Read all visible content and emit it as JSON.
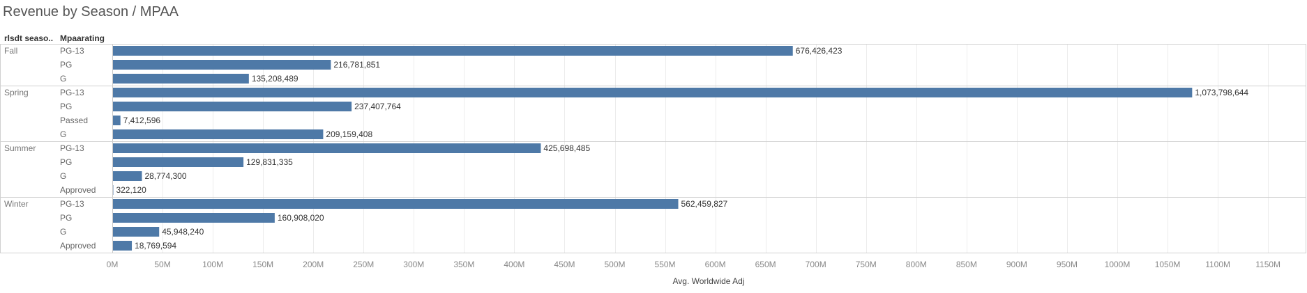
{
  "header": {
    "title": "Revenue by Season / MPAA",
    "season_col": "rlsdt seaso..",
    "mpaa_col": "Mpaarating"
  },
  "colors": {
    "bar": "#4e79a7",
    "grid": "#ececec",
    "divider": "#d0d0d0"
  },
  "chart_data": {
    "type": "bar",
    "orientation": "horizontal",
    "title": "Revenue by Season / MPAA",
    "xlabel": "Avg. Worldwide Adj",
    "xlim": [
      0,
      1180000000
    ],
    "ticks": [
      0,
      50000000,
      100000000,
      150000000,
      200000000,
      250000000,
      300000000,
      350000000,
      400000000,
      450000000,
      500000000,
      550000000,
      600000000,
      650000000,
      700000000,
      750000000,
      800000000,
      850000000,
      900000000,
      950000000,
      1000000000,
      1050000000,
      1100000000,
      1150000000
    ],
    "tick_labels": [
      "0M",
      "50M",
      "100M",
      "150M",
      "200M",
      "250M",
      "300M",
      "350M",
      "400M",
      "450M",
      "500M",
      "550M",
      "600M",
      "650M",
      "700M",
      "750M",
      "800M",
      "850M",
      "900M",
      "950M",
      "1000M",
      "1050M",
      "1100M",
      "1150M"
    ],
    "grid": true,
    "groups": [
      {
        "season": "Fall",
        "bars": [
          {
            "rating": "PG-13",
            "value": 676426423,
            "label": "676,426,423"
          },
          {
            "rating": "PG",
            "value": 216781851,
            "label": "216,781,851"
          },
          {
            "rating": "G",
            "value": 135208489,
            "label": "135,208,489"
          }
        ]
      },
      {
        "season": "Spring",
        "bars": [
          {
            "rating": "PG-13",
            "value": 1073798644,
            "label": "1,073,798,644"
          },
          {
            "rating": "PG",
            "value": 237407764,
            "label": "237,407,764"
          },
          {
            "rating": "Passed",
            "value": 7412596,
            "label": "7,412,596"
          },
          {
            "rating": "G",
            "value": 209159408,
            "label": "209,159,408"
          }
        ]
      },
      {
        "season": "Summer",
        "bars": [
          {
            "rating": "PG-13",
            "value": 425698485,
            "label": "425,698,485"
          },
          {
            "rating": "PG",
            "value": 129831335,
            "label": "129,831,335"
          },
          {
            "rating": "G",
            "value": 28774300,
            "label": "28,774,300"
          },
          {
            "rating": "Approved",
            "value": 322120,
            "label": "322,120"
          }
        ]
      },
      {
        "season": "Winter",
        "bars": [
          {
            "rating": "PG-13",
            "value": 562459827,
            "label": "562,459,827"
          },
          {
            "rating": "PG",
            "value": 160908020,
            "label": "160,908,020"
          },
          {
            "rating": "G",
            "value": 45948240,
            "label": "45,948,240"
          },
          {
            "rating": "Approved",
            "value": 18769594,
            "label": "18,769,594"
          }
        ]
      }
    ]
  }
}
